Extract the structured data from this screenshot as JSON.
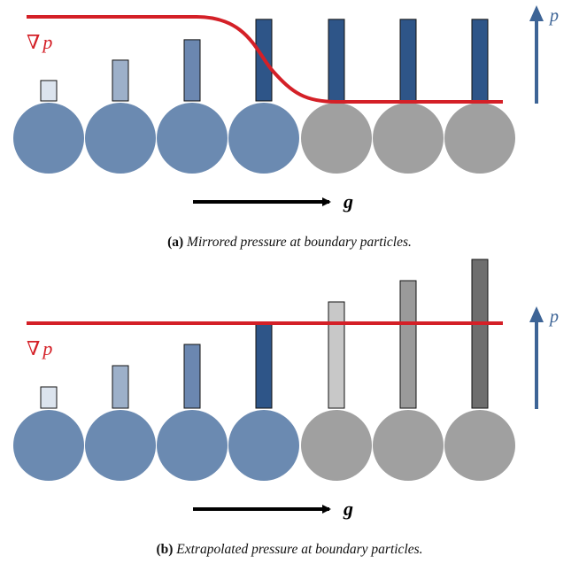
{
  "panels": [
    {
      "id": "a",
      "caption_label": "(a)",
      "caption_text": "Mirrored pressure at boundary particles.",
      "gradient_symbol": "∇",
      "gradient_var": "p",
      "pressure_label": "p",
      "gravity_label": "g",
      "bar_levels": [
        0.24,
        0.48,
        0.72,
        0.96,
        0.96,
        0.96,
        0.96
      ],
      "bar_colors": [
        "#dce4ee",
        "#9db0c9",
        "#6b87b0",
        "#2e5588",
        "#2e5588",
        "#2e5588",
        "#2e5588"
      ],
      "particle_types": [
        "fluid",
        "fluid",
        "fluid",
        "fluid",
        "boundary",
        "boundary",
        "boundary"
      ],
      "pressure_curve": "step-down",
      "colors": {
        "fluid": "#6b8ab1",
        "boundary": "#a0a0a0",
        "curve": "#d42027",
        "arrow": "#3d6496"
      }
    },
    {
      "id": "b",
      "caption_label": "(b)",
      "caption_text": "Extrapolated pressure at boundary particles.",
      "gradient_symbol": "∇",
      "gradient_var": "p",
      "pressure_label": "p",
      "gravity_label": "g",
      "bar_levels": [
        0.15,
        0.3,
        0.45,
        0.6,
        0.75,
        0.9,
        1.05
      ],
      "bar_colors": [
        "#dce4ee",
        "#9db0c9",
        "#6b87b0",
        "#2e5588",
        "#c8c8c8",
        "#9a9a9a",
        "#6e6e6e"
      ],
      "particle_types": [
        "fluid",
        "fluid",
        "fluid",
        "fluid",
        "boundary",
        "boundary",
        "boundary"
      ],
      "pressure_curve": "flat",
      "colors": {
        "fluid": "#6b8ab1",
        "boundary": "#a0a0a0",
        "curve": "#d42027",
        "arrow": "#3d6496"
      }
    }
  ]
}
